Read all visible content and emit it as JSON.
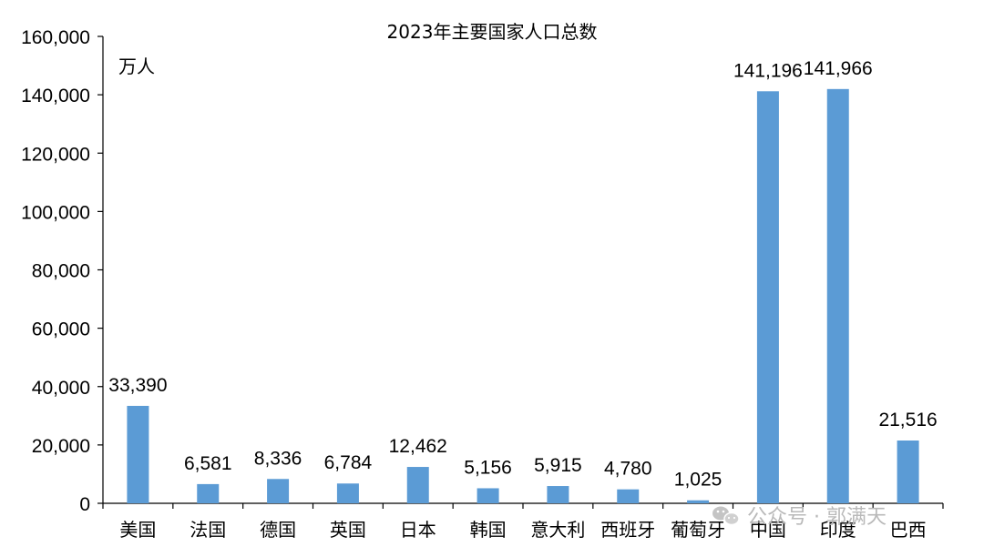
{
  "chart_data": {
    "type": "bar",
    "title": "2023年主要国家人口总数",
    "unit_label": "万人",
    "categories": [
      "美国",
      "法国",
      "德国",
      "英国",
      "日本",
      "韩国",
      "意大利",
      "西班牙",
      "葡萄牙",
      "中国",
      "印度",
      "巴西"
    ],
    "values": [
      33390,
      6581,
      8336,
      6784,
      12462,
      5156,
      5915,
      4780,
      1025,
      141196,
      141966,
      21516
    ],
    "value_labels": [
      "33,390",
      "6,581",
      "8,336",
      "6,784",
      "12,462",
      "5,156",
      "5,915",
      "4,780",
      "1,025",
      "141,196",
      "141,966",
      "21,516"
    ],
    "ylim": [
      0,
      160000
    ],
    "y_ticks": [
      0,
      20000,
      40000,
      60000,
      80000,
      100000,
      120000,
      140000,
      160000
    ],
    "y_tick_labels": [
      "0",
      "20,000",
      "40,000",
      "60,000",
      "80,000",
      "100,000",
      "120,000",
      "140,000",
      "160,000"
    ],
    "bar_color": "#5b9bd5",
    "grid": false,
    "legend": "none"
  },
  "watermark": {
    "text": "公众号 · 郭满天",
    "icon": "wechat-icon"
  }
}
